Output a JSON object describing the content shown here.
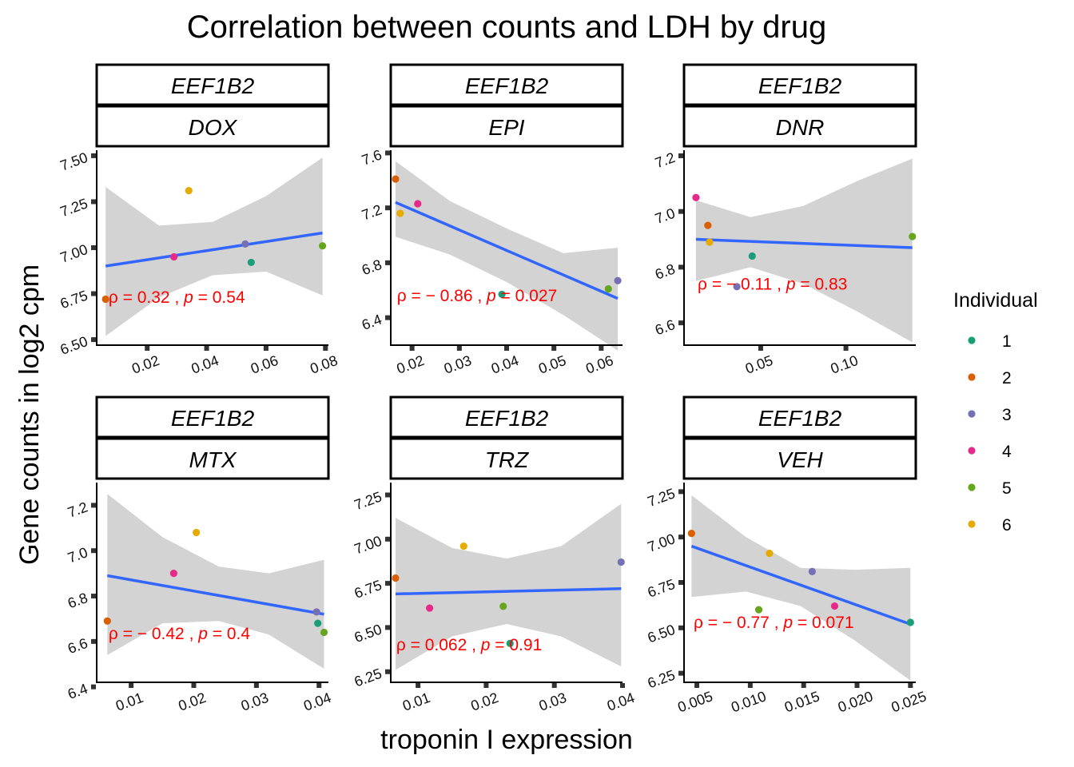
{
  "title": "Correlation between counts and LDH by drug",
  "xlabel": "troponin I expression",
  "ylabel": "Gene counts in log2 cpm",
  "legend": {
    "title": "Individual",
    "position": "right",
    "items": [
      {
        "label": "1",
        "color": "#1b9e77"
      },
      {
        "label": "2",
        "color": "#d95f02"
      },
      {
        "label": "3",
        "color": "#7570b3"
      },
      {
        "label": "4",
        "color": "#e7298a"
      },
      {
        "label": "5",
        "color": "#66a61e"
      },
      {
        "label": "6",
        "color": "#e6ab02"
      }
    ]
  },
  "colors": {
    "fit_line": "#3366ff",
    "confidence_band": "#d3d3d3",
    "annotation": "#ff0000"
  },
  "chart_data": [
    {
      "type": "scatter",
      "gene": "EEF1B2",
      "drug": "DOX",
      "xlim": [
        0.003,
        0.081
      ],
      "ylim": [
        6.47,
        7.53
      ],
      "xticks": [
        {
          "v": 0.02,
          "label": "0.02"
        },
        {
          "v": 0.04,
          "label": "0.04"
        },
        {
          "v": 0.06,
          "label": "0.06"
        },
        {
          "v": 0.08,
          "label": "0.08"
        }
      ],
      "yticks": [
        {
          "v": 6.5,
          "label": "6.50"
        },
        {
          "v": 6.75,
          "label": "6.75"
        },
        {
          "v": 7.0,
          "label": "7.00"
        },
        {
          "v": 7.25,
          "label": "7.25"
        },
        {
          "v": 7.5,
          "label": "7.50"
        }
      ],
      "points": [
        {
          "individual": "1",
          "x": 0.055,
          "y": 6.92
        },
        {
          "individual": "2",
          "x": 0.006,
          "y": 6.72
        },
        {
          "individual": "3",
          "x": 0.053,
          "y": 7.02
        },
        {
          "individual": "4",
          "x": 0.029,
          "y": 6.95
        },
        {
          "individual": "5",
          "x": 0.079,
          "y": 7.01
        },
        {
          "individual": "6",
          "x": 0.034,
          "y": 7.31
        }
      ],
      "fit": {
        "x": [
          0.006,
          0.079
        ],
        "y": [
          6.9,
          7.08
        ]
      },
      "ci": [
        {
          "x": 0.006,
          "lo": 6.52,
          "hi": 7.33
        },
        {
          "x": 0.024,
          "lo": 6.73,
          "hi": 7.12
        },
        {
          "x": 0.042,
          "lo": 6.85,
          "hi": 7.14
        },
        {
          "x": 0.06,
          "lo": 6.87,
          "hi": 7.28
        },
        {
          "x": 0.079,
          "lo": 6.74,
          "hi": 7.49
        }
      ],
      "annotation": {
        "x": 0.007,
        "y": 6.7,
        "rho_label": "ρ = 0.32 , ",
        "p_label": "p",
        "p_value": " = 0.54"
      }
    },
    {
      "type": "scatter",
      "gene": "EEF1B2",
      "drug": "EPI",
      "xlim": [
        0.0155,
        0.0645
      ],
      "ylim": [
        6.2,
        7.62
      ],
      "xticks": [
        {
          "v": 0.02,
          "label": "0.02"
        },
        {
          "v": 0.03,
          "label": "0.03"
        },
        {
          "v": 0.04,
          "label": "0.04"
        },
        {
          "v": 0.05,
          "label": "0.05"
        },
        {
          "v": 0.06,
          "label": "0.06"
        }
      ],
      "yticks": [
        {
          "v": 6.4,
          "label": "6.4"
        },
        {
          "v": 6.8,
          "label": "6.8"
        },
        {
          "v": 7.2,
          "label": "7.2"
        },
        {
          "v": 7.6,
          "label": "7.6"
        }
      ],
      "points": [
        {
          "individual": "1",
          "x": 0.039,
          "y": 6.57
        },
        {
          "individual": "2",
          "x": 0.0165,
          "y": 7.41
        },
        {
          "individual": "3",
          "x": 0.0635,
          "y": 6.67
        },
        {
          "individual": "4",
          "x": 0.0212,
          "y": 7.23
        },
        {
          "individual": "5",
          "x": 0.0615,
          "y": 6.61
        },
        {
          "individual": "6",
          "x": 0.0175,
          "y": 7.16
        }
      ],
      "fit": {
        "x": [
          0.0165,
          0.0635
        ],
        "y": [
          7.24,
          6.54
        ]
      },
      "ci": [
        {
          "x": 0.0165,
          "lo": 6.99,
          "hi": 7.54
        },
        {
          "x": 0.028,
          "lo": 6.86,
          "hi": 7.25
        },
        {
          "x": 0.04,
          "lo": 6.66,
          "hi": 7.05
        },
        {
          "x": 0.052,
          "lo": 6.42,
          "hi": 6.87
        },
        {
          "x": 0.0635,
          "lo": 6.16,
          "hi": 6.91
        }
      ],
      "annotation": {
        "x": 0.0168,
        "y": 6.52,
        "rho_label": "ρ = − 0.86 , ",
        "p_label": "p",
        "p_value": " = 0.027"
      }
    },
    {
      "type": "scatter",
      "gene": "EEF1B2",
      "drug": "DNR",
      "xlim": [
        0.005,
        0.141
      ],
      "ylim": [
        6.52,
        7.22
      ],
      "xticks": [
        {
          "v": 0.05,
          "label": "0.05"
        },
        {
          "v": 0.1,
          "label": "0.10"
        }
      ],
      "yticks": [
        {
          "v": 6.6,
          "label": "6.6"
        },
        {
          "v": 6.8,
          "label": "6.8"
        },
        {
          "v": 7.0,
          "label": "7.0"
        },
        {
          "v": 7.2,
          "label": "7.2"
        }
      ],
      "points": [
        {
          "individual": "1",
          "x": 0.045,
          "y": 6.84
        },
        {
          "individual": "2",
          "x": 0.019,
          "y": 6.95
        },
        {
          "individual": "3",
          "x": 0.036,
          "y": 6.73
        },
        {
          "individual": "4",
          "x": 0.012,
          "y": 7.05
        },
        {
          "individual": "5",
          "x": 0.139,
          "y": 6.91
        },
        {
          "individual": "6",
          "x": 0.02,
          "y": 6.89
        }
      ],
      "fit": {
        "x": [
          0.012,
          0.139
        ],
        "y": [
          6.9,
          6.87
        ]
      },
      "ci": [
        {
          "x": 0.012,
          "lo": 6.75,
          "hi": 7.04
        },
        {
          "x": 0.044,
          "lo": 6.8,
          "hi": 6.98
        },
        {
          "x": 0.075,
          "lo": 6.74,
          "hi": 7.02
        },
        {
          "x": 0.107,
          "lo": 6.64,
          "hi": 7.11
        },
        {
          "x": 0.139,
          "lo": 6.53,
          "hi": 7.19
        }
      ],
      "annotation": {
        "x": 0.013,
        "y": 6.72,
        "rho_label": "ρ = − 0.11 , ",
        "p_label": "p",
        "p_value": " = 0.83"
      }
    },
    {
      "type": "scatter",
      "gene": "EEF1B2",
      "drug": "MTX",
      "xlim": [
        0.0045,
        0.0415
      ],
      "ylim": [
        6.42,
        7.3
      ],
      "xticks": [
        {
          "v": 0.01,
          "label": "0.01"
        },
        {
          "v": 0.02,
          "label": "0.02"
        },
        {
          "v": 0.03,
          "label": "0.03"
        },
        {
          "v": 0.04,
          "label": "0.04"
        }
      ],
      "yticks": [
        {
          "v": 6.4,
          "label": "6.4"
        },
        {
          "v": 6.6,
          "label": "6.6"
        },
        {
          "v": 6.8,
          "label": "6.8"
        },
        {
          "v": 7.0,
          "label": "7.0"
        },
        {
          "v": 7.2,
          "label": "7.2"
        }
      ],
      "points": [
        {
          "individual": "1",
          "x": 0.0398,
          "y": 6.68
        },
        {
          "individual": "2",
          "x": 0.0062,
          "y": 6.69
        },
        {
          "individual": "3",
          "x": 0.0396,
          "y": 6.73
        },
        {
          "individual": "4",
          "x": 0.0168,
          "y": 6.9
        },
        {
          "individual": "5",
          "x": 0.0408,
          "y": 6.64
        },
        {
          "individual": "6",
          "x": 0.0204,
          "y": 7.08
        }
      ],
      "fit": {
        "x": [
          0.0062,
          0.0408
        ],
        "y": [
          6.89,
          6.72
        ]
      },
      "ci": [
        {
          "x": 0.0062,
          "lo": 6.54,
          "hi": 7.25
        },
        {
          "x": 0.015,
          "lo": 6.68,
          "hi": 7.06
        },
        {
          "x": 0.024,
          "lo": 6.69,
          "hi": 6.93
        },
        {
          "x": 0.032,
          "lo": 6.63,
          "hi": 6.9
        },
        {
          "x": 0.0408,
          "lo": 6.48,
          "hi": 6.96
        }
      ],
      "annotation": {
        "x": 0.0064,
        "y": 6.61,
        "rho_label": "ρ = − 0.42 , ",
        "p_label": "p",
        "p_value": " = 0.4"
      }
    },
    {
      "type": "scatter",
      "gene": "EEF1B2",
      "drug": "TRZ",
      "xlim": [
        0.006,
        0.04
      ],
      "ylim": [
        6.19,
        7.32
      ],
      "xticks": [
        {
          "v": 0.01,
          "label": "0.01"
        },
        {
          "v": 0.02,
          "label": "0.02"
        },
        {
          "v": 0.03,
          "label": "0.03"
        },
        {
          "v": 0.04,
          "label": "0.04"
        }
      ],
      "yticks": [
        {
          "v": 6.25,
          "label": "6.25"
        },
        {
          "v": 6.5,
          "label": "6.50"
        },
        {
          "v": 6.75,
          "label": "6.75"
        },
        {
          "v": 7.0,
          "label": "7.00"
        },
        {
          "v": 7.25,
          "label": "7.25"
        }
      ],
      "points": [
        {
          "individual": "1",
          "x": 0.0235,
          "y": 6.41
        },
        {
          "individual": "2",
          "x": 0.0067,
          "y": 6.78
        },
        {
          "individual": "3",
          "x": 0.0398,
          "y": 6.87
        },
        {
          "individual": "4",
          "x": 0.0117,
          "y": 6.61
        },
        {
          "individual": "5",
          "x": 0.0225,
          "y": 6.62
        },
        {
          "individual": "6",
          "x": 0.0167,
          "y": 6.96
        }
      ],
      "fit": {
        "x": [
          0.0067,
          0.0398
        ],
        "y": [
          6.69,
          6.72
        ]
      },
      "ci": [
        {
          "x": 0.0067,
          "lo": 6.26,
          "hi": 7.12
        },
        {
          "x": 0.015,
          "lo": 6.45,
          "hi": 6.95
        },
        {
          "x": 0.023,
          "lo": 6.52,
          "hi": 6.89
        },
        {
          "x": 0.031,
          "lo": 6.45,
          "hi": 6.96
        },
        {
          "x": 0.0398,
          "lo": 6.28,
          "hi": 7.2
        }
      ],
      "annotation": {
        "x": 0.0068,
        "y": 6.37,
        "rho_label": "ρ = 0.062 , ",
        "p_label": "p",
        "p_value": " = 0.91"
      }
    },
    {
      "type": "scatter",
      "gene": "EEF1B2",
      "drug": "VEH",
      "xlim": [
        0.0038,
        0.0255
      ],
      "ylim": [
        6.2,
        7.3
      ],
      "xticks": [
        {
          "v": 0.005,
          "label": "0.005"
        },
        {
          "v": 0.01,
          "label": "0.010"
        },
        {
          "v": 0.015,
          "label": "0.015"
        },
        {
          "v": 0.02,
          "label": "0.020"
        },
        {
          "v": 0.025,
          "label": "0.025"
        }
      ],
      "yticks": [
        {
          "v": 6.25,
          "label": "6.25"
        },
        {
          "v": 6.5,
          "label": "6.50"
        },
        {
          "v": 6.75,
          "label": "6.75"
        },
        {
          "v": 7.0,
          "label": "7.00"
        },
        {
          "v": 7.25,
          "label": "7.25"
        }
      ],
      "points": [
        {
          "individual": "1",
          "x": 0.025,
          "y": 6.53
        },
        {
          "individual": "2",
          "x": 0.0045,
          "y": 7.02
        },
        {
          "individual": "3",
          "x": 0.0158,
          "y": 6.81
        },
        {
          "individual": "4",
          "x": 0.0179,
          "y": 6.62
        },
        {
          "individual": "5",
          "x": 0.0108,
          "y": 6.6
        },
        {
          "individual": "6",
          "x": 0.0118,
          "y": 6.91
        }
      ],
      "fit": {
        "x": [
          0.0045,
          0.025
        ],
        "y": [
          6.95,
          6.52
        ]
      },
      "ci": [
        {
          "x": 0.0045,
          "lo": 6.67,
          "hi": 7.23
        },
        {
          "x": 0.0096,
          "lo": 6.7,
          "hi": 7.0
        },
        {
          "x": 0.0147,
          "lo": 6.62,
          "hi": 6.83
        },
        {
          "x": 0.0198,
          "lo": 6.43,
          "hi": 6.82
        },
        {
          "x": 0.025,
          "lo": 6.21,
          "hi": 6.83
        }
      ],
      "annotation": {
        "x": 0.0047,
        "y": 6.5,
        "rho_label": "ρ = − 0.77 , ",
        "p_label": "p",
        "p_value": " = 0.071"
      }
    }
  ]
}
